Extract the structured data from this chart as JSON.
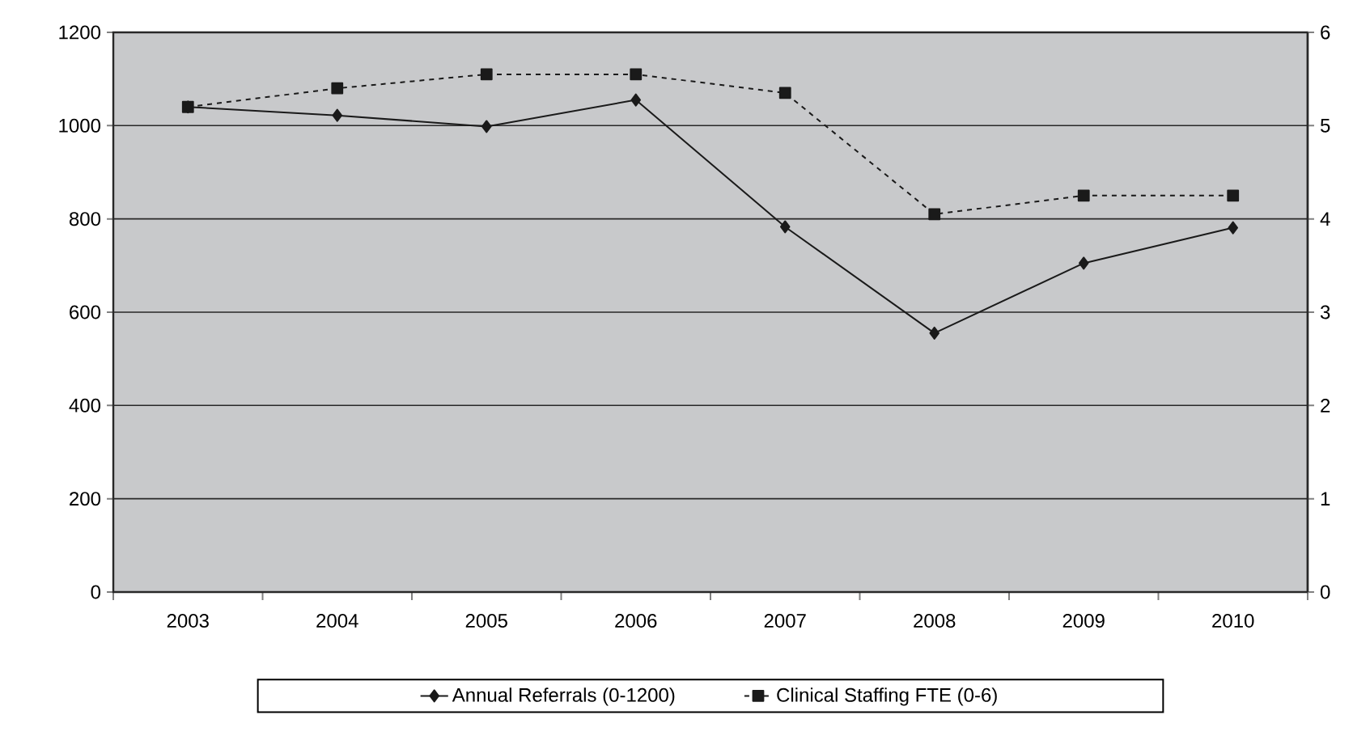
{
  "chart_data": {
    "type": "line",
    "categories": [
      "2003",
      "2004",
      "2005",
      "2006",
      "2007",
      "2008",
      "2009",
      "2010"
    ],
    "series": [
      {
        "name": "Annual Referrals (0-1200)",
        "color": "#1a1a1a",
        "marker": "diamond",
        "line_style": "solid",
        "values": [
          1040,
          1022,
          998,
          1055,
          783,
          555,
          705,
          781
        ]
      },
      {
        "name": "Clinical Staffing FTE (0-6)",
        "color": "#1a1a1a",
        "marker": "square",
        "line_style": "dashed",
        "axis": "y2",
        "values": [
          5.2,
          5.4,
          5.55,
          5.55,
          5.35,
          4.05,
          4.25,
          4.25
        ]
      }
    ],
    "ylim": [
      0,
      1200
    ],
    "yticks": [
      0,
      200,
      400,
      600,
      800,
      1000,
      1200
    ],
    "y2lim": [
      0,
      6
    ],
    "y2ticks": [
      0,
      1,
      2,
      3,
      4,
      5,
      6
    ],
    "grid": "y",
    "legend": "bottom"
  }
}
